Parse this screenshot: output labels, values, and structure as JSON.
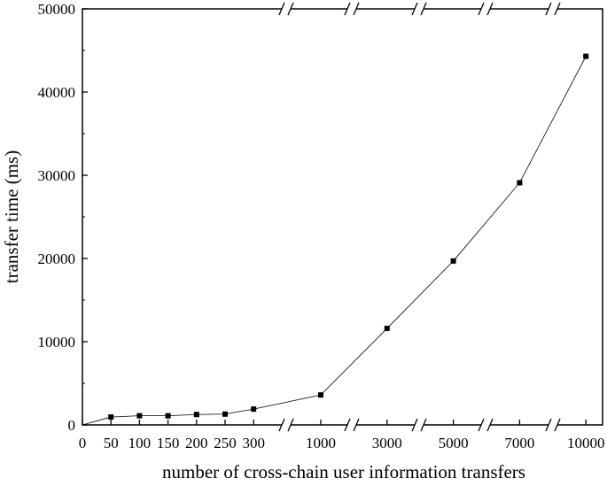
{
  "chart_data": {
    "type": "line",
    "x_label": "number of cross-chain user information transfers",
    "y_label": "transfer time (ms)",
    "categories": [
      "0",
      "50",
      "100",
      "150",
      "200",
      "250",
      "300",
      "1000",
      "3000",
      "5000",
      "7000",
      "10000"
    ],
    "values": [
      0,
      950,
      1100,
      1100,
      1250,
      1300,
      1900,
      3600,
      11600,
      19700,
      29100,
      44300
    ],
    "color": "#000000",
    "ylim": [
      0,
      50000
    ],
    "yticks": [
      0,
      10000,
      20000,
      30000,
      40000,
      50000
    ]
  }
}
